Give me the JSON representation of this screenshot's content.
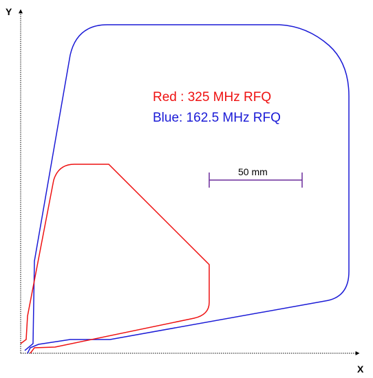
{
  "axes": {
    "x_label": "X",
    "y_label": "Y"
  },
  "legend": {
    "red_text": "Red : 325 MHz RFQ",
    "blue_text": "Blue: 162.5 MHz RFQ"
  },
  "scale_bar": {
    "label": "50 mm",
    "length_mm": 50
  },
  "colors": {
    "red": "#ee1111",
    "blue": "#1a1ad6",
    "scale_bar": "#6a2a9a",
    "axis": "#000000"
  }
}
